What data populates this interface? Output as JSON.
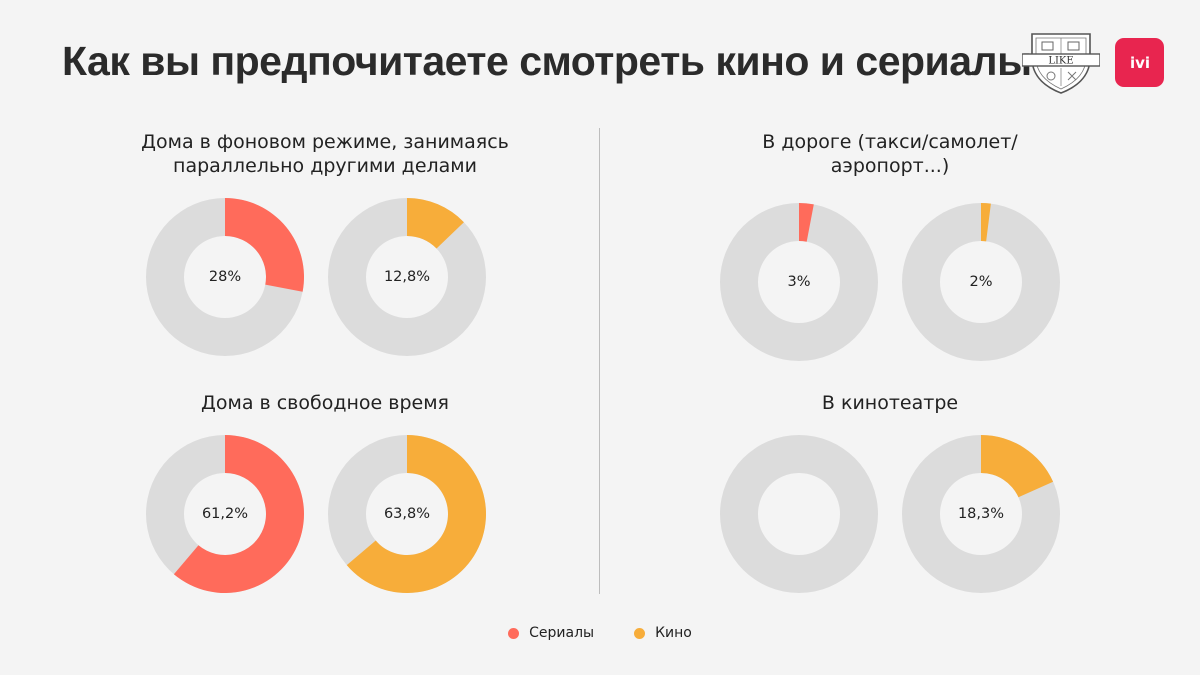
{
  "title": "Как вы предпочитаете смотреть кино и сериалы?",
  "logos": {
    "like": "LIKE",
    "ivi": "ivi"
  },
  "colors": {
    "series": "#ff6b5b",
    "movies": "#f7ad3a",
    "track": "#dcdcdc"
  },
  "chart_data": {
    "type": "pie",
    "variant": "donut",
    "legend": {
      "placement": "bottom-center"
    },
    "series": [
      {
        "name": "Сериалы",
        "color": "#ff6b5b"
      },
      {
        "name": "Кино",
        "color": "#f7ad3a"
      }
    ],
    "panels": [
      {
        "title": "Дома в фоновом режиме, занимаясь\nпараллельно другими делами",
        "values": [
          {
            "series": "Сериалы",
            "value": 28,
            "label": "28%"
          },
          {
            "series": "Кино",
            "value": 12.8,
            "label": "12,8%"
          }
        ]
      },
      {
        "title": "В дороге (такси/самолет/\nаэропорт...)",
        "values": [
          {
            "series": "Сериалы",
            "value": 3,
            "label": "3%"
          },
          {
            "series": "Кино",
            "value": 2,
            "label": "2%"
          }
        ]
      },
      {
        "title": "Дома в свободное время",
        "values": [
          {
            "series": "Сериалы",
            "value": 61.2,
            "label": "61,2%"
          },
          {
            "series": "Кино",
            "value": 63.8,
            "label": "63,8%"
          }
        ]
      },
      {
        "title": "В кинотеатре",
        "values": [
          {
            "series": "Сериалы",
            "value": 0,
            "label": ""
          },
          {
            "series": "Кино",
            "value": 18.3,
            "label": "18,3%"
          }
        ]
      }
    ]
  }
}
